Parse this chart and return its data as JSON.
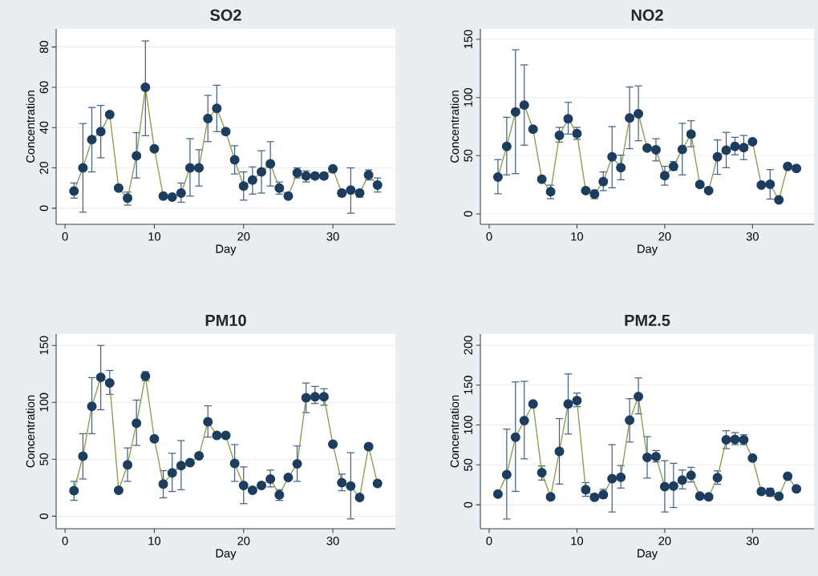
{
  "chart_data": [
    {
      "type": "line",
      "title": "SO2",
      "xlabel": "Day",
      "ylabel": "Concentration",
      "marker": "circle",
      "grid": "y",
      "xlim": [
        -1,
        37
      ],
      "ylim": [
        -8,
        89
      ],
      "xticks": [
        0,
        10,
        20,
        30
      ],
      "yticks": [
        0,
        20,
        40,
        60,
        80
      ],
      "x": [
        1,
        2,
        3,
        4,
        5,
        6,
        7,
        8,
        9,
        10,
        11,
        12,
        13,
        14,
        15,
        16,
        17,
        18,
        19,
        20,
        21,
        22,
        23,
        24,
        25,
        26,
        27,
        28,
        29,
        30,
        31,
        32,
        33,
        34,
        35
      ],
      "series": [
        {
          "color": "#1c3d5e",
          "values": [
            8.5,
            20,
            34,
            38,
            46.5,
            10,
            5,
            26,
            60,
            29.5,
            6,
            5.5,
            7.5,
            20,
            20,
            44.5,
            49.5,
            38,
            24,
            11,
            14,
            18,
            22,
            10,
            6,
            17.5,
            16,
            16,
            16,
            19.5,
            7.5,
            9,
            7.5,
            16.5,
            11.5
          ],
          "errors": [
            [
              5,
              12.5
            ],
            [
              -2,
              42
            ],
            [
              18,
              50
            ],
            [
              25,
              51
            ],
            null,
            null,
            [
              1.5,
              8
            ],
            [
              15,
              37.5
            ],
            [
              36,
              83
            ],
            null,
            null,
            null,
            [
              3,
              12.5
            ],
            [
              6,
              34.5
            ],
            [
              11,
              29
            ],
            [
              33,
              56
            ],
            [
              38,
              61
            ],
            null,
            [
              17,
              31
            ],
            [
              4,
              18
            ],
            [
              7,
              20.5
            ],
            [
              7.5,
              28.5
            ],
            [
              11,
              33
            ],
            [
              7,
              13
            ],
            null,
            [
              15,
              20
            ],
            [
              13,
              18.5
            ],
            [
              14.5,
              17.5
            ],
            [
              14.5,
              17.5
            ],
            null,
            [
              6,
              9
            ],
            [
              -2.5,
              20
            ],
            [
              5.5,
              9
            ],
            [
              14,
              19
            ],
            [
              8,
              15
            ]
          ]
        }
      ]
    },
    {
      "type": "line",
      "title": "NO2",
      "xlabel": "Day",
      "ylabel": "Concentration",
      "marker": "circle",
      "grid": "y",
      "xlim": [
        -1,
        37
      ],
      "ylim": [
        -9,
        159
      ],
      "xticks": [
        0,
        10,
        20,
        30
      ],
      "yticks": [
        0,
        50,
        100,
        150
      ],
      "x": [
        1,
        2,
        3,
        4,
        5,
        6,
        7,
        8,
        9,
        10,
        11,
        12,
        13,
        14,
        15,
        16,
        17,
        18,
        19,
        20,
        21,
        22,
        23,
        24,
        25,
        26,
        27,
        28,
        29,
        30,
        31,
        32,
        33,
        34,
        35
      ],
      "series": [
        {
          "color": "#1c3d5e",
          "values": [
            31.6,
            58,
            87.5,
            93.5,
            72.7,
            29.8,
            19,
            67.4,
            81.7,
            69,
            20,
            17,
            27.7,
            49,
            39.7,
            82.4,
            86,
            56.5,
            55,
            32.8,
            40.8,
            55.4,
            68.5,
            25.2,
            20,
            49,
            54.7,
            58,
            57,
            62,
            24.7,
            25.4,
            12,
            40.8,
            39
          ],
          "errors": [
            [
              17.3,
              46.6
            ],
            [
              33.5,
              83
            ],
            [
              34.6,
              141
            ],
            [
              59,
              128
            ],
            null,
            null,
            [
              13,
              24.7
            ],
            [
              61.6,
              74.3
            ],
            [
              68.5,
              95.8
            ],
            [
              64,
              74.3
            ],
            null,
            [
              13,
              20.5
            ],
            [
              20,
              36
            ],
            [
              22.4,
              75
            ],
            [
              29.3,
              50.5
            ],
            [
              56,
              109
            ],
            [
              62.8,
              110
            ],
            null,
            [
              45.5,
              64.6
            ],
            [
              24.7,
              40.8
            ],
            [
              37.4,
              45
            ],
            [
              33.5,
              77.8
            ],
            [
              57.7,
              80
            ],
            null,
            null,
            [
              34,
              63.5
            ],
            [
              39.7,
              70
            ],
            [
              50.8,
              65.8
            ],
            [
              46.6,
              67.4
            ],
            null,
            null,
            [
              12.7,
              38
            ],
            null,
            null,
            null
          ]
        }
      ]
    },
    {
      "type": "line",
      "title": "PM10",
      "xlabel": "Day",
      "ylabel": "Concentration",
      "marker": "circle",
      "grid": "y",
      "xlim": [
        -1,
        37
      ],
      "ylim": [
        -11,
        160
      ],
      "xticks": [
        0,
        10,
        20,
        30
      ],
      "yticks": [
        0,
        50,
        100,
        150
      ],
      "x": [
        1,
        2,
        3,
        4,
        5,
        6,
        7,
        8,
        9,
        10,
        11,
        12,
        13,
        14,
        15,
        16,
        17,
        18,
        19,
        20,
        21,
        22,
        23,
        24,
        25,
        26,
        27,
        28,
        29,
        30,
        31,
        32,
        33,
        34,
        35
      ],
      "series": [
        {
          "color": "#1c3d5e",
          "values": [
            22.4,
            52.7,
            96.5,
            122,
            117,
            22.8,
            45.2,
            81.7,
            123,
            68,
            28.3,
            38,
            44.5,
            47,
            53,
            83,
            71,
            71,
            46.4,
            27,
            22.8,
            27,
            32.7,
            18.8,
            34,
            46,
            104,
            105,
            105,
            63.3,
            29.4,
            26.4,
            16.5,
            61.2,
            28.7
          ],
          "errors": [
            [
              14,
              30.6
            ],
            [
              32.7,
              72.5
            ],
            [
              72.5,
              121.7
            ],
            [
              93.5,
              150
            ],
            [
              107,
              128
            ],
            null,
            [
              30.6,
              60
            ],
            [
              62.2,
              102
            ],
            [
              119,
              127
            ],
            null,
            [
              16.2,
              40
            ],
            [
              21.7,
              55.3
            ],
            [
              23.3,
              66.4
            ],
            null,
            null,
            [
              69.5,
              97
            ],
            null,
            null,
            [
              30.6,
              62.9
            ],
            [
              11,
              43.3
            ],
            null,
            null,
            [
              25.7,
              40.5
            ],
            [
              13.9,
              23.3
            ],
            null,
            [
              30.6,
              61.7
            ],
            [
              91,
              117
            ],
            [
              99,
              114
            ],
            [
              97.5,
              112
            ],
            null,
            [
              22.4,
              37
            ],
            [
              -2.4,
              55.8
            ],
            null,
            null,
            null
          ]
        }
      ]
    },
    {
      "type": "line",
      "title": "PM2.5",
      "xlabel": "Day",
      "ylabel": "Concentration",
      "marker": "circle",
      "grid": "y",
      "xlim": [
        -1,
        37
      ],
      "ylim": [
        -30,
        214
      ],
      "xticks": [
        0,
        10,
        20,
        30
      ],
      "yticks": [
        0,
        50,
        100,
        150,
        200
      ],
      "x": [
        1,
        2,
        3,
        4,
        5,
        6,
        7,
        8,
        9,
        10,
        11,
        12,
        13,
        14,
        15,
        16,
        17,
        18,
        19,
        20,
        21,
        22,
        23,
        24,
        25,
        26,
        27,
        28,
        29,
        30,
        31,
        32,
        33,
        34,
        35
      ],
      "series": [
        {
          "color": "#1c3d5e",
          "values": [
            13.4,
            37.9,
            84.8,
            105.5,
            126.3,
            40.2,
            10,
            67,
            126.3,
            130.7,
            19,
            9.4,
            12.7,
            32.8,
            34.5,
            106,
            135.7,
            59.3,
            60.3,
            22.8,
            23.5,
            31,
            36.9,
            11,
            10,
            34,
            81.4,
            82,
            81.4,
            58.6,
            16.8,
            15.7,
            10.7,
            35.8,
            20
          ],
          "errors": [
            null,
            [
              -17.8,
              94.8
            ],
            [
              16.8,
              154
            ],
            [
              57.6,
              154.8
            ],
            null,
            [
              31,
              48.6
            ],
            null,
            [
              26,
              108
            ],
            [
              88.8,
              164
            ],
            [
              123,
              140
            ],
            [
              10.7,
              27.8
            ],
            null,
            [
              8.4,
              19.4
            ],
            [
              -9,
              75.4
            ],
            [
              21,
              49.2
            ],
            [
              78.7,
              133
            ],
            [
              114,
              159
            ],
            [
              33.5,
              85.4
            ],
            [
              53.6,
              68
            ],
            [
              -9,
              55.3
            ],
            [
              -3.4,
              52
            ],
            [
              20,
              43.6
            ],
            [
              28.5,
              47
            ],
            null,
            null,
            [
              25.8,
              42.5
            ],
            [
              70.4,
              92.8
            ],
            [
              75.4,
              90.5
            ],
            [
              75.4,
              87.8
            ],
            null,
            null,
            [
              10.7,
              20.8
            ],
            null,
            null,
            null
          ]
        }
      ]
    }
  ]
}
